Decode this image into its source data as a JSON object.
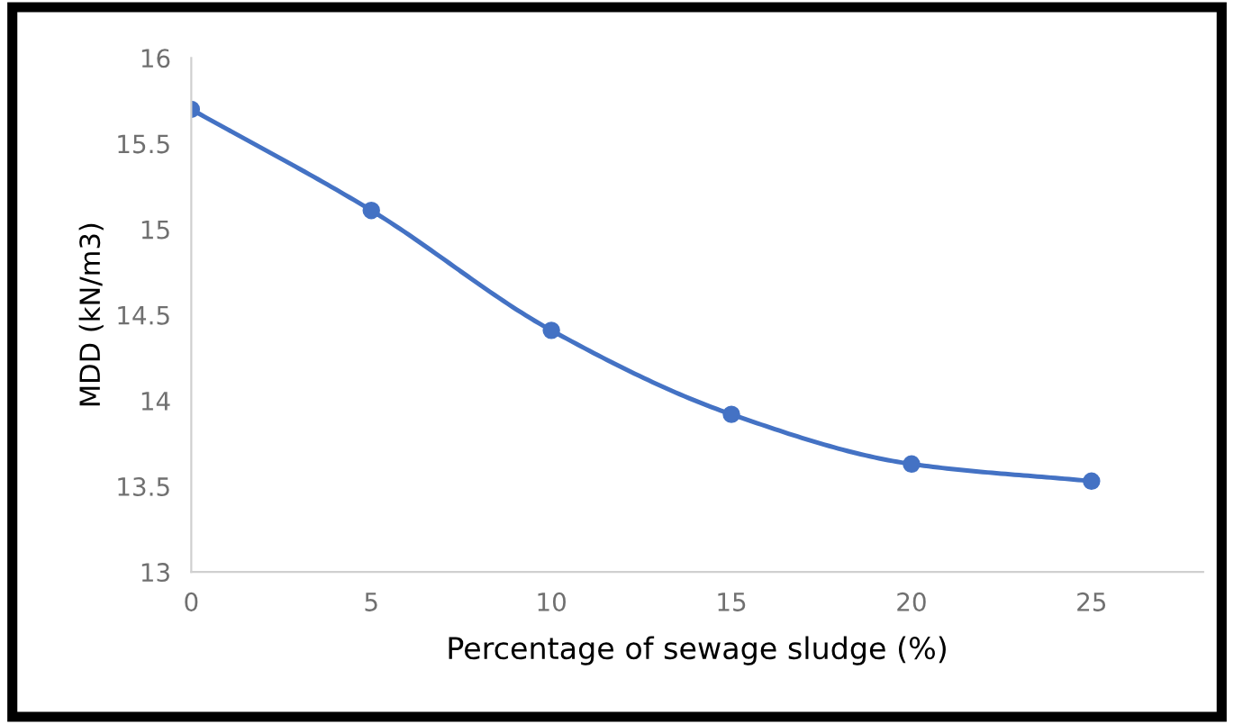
{
  "chart_data": {
    "type": "line",
    "xlabel": "Percentage of sewage sludge (%)",
    "ylabel": "MDD (kN/m3)",
    "x": [
      0,
      5,
      10,
      15,
      20,
      25
    ],
    "series": [
      {
        "color": "#4472c4",
        "values": [
          15.7,
          15.11,
          14.41,
          13.92,
          13.63,
          13.53
        ]
      }
    ],
    "xlim": [
      0,
      28.1
    ],
    "xticks": [
      0,
      5,
      10,
      15,
      20,
      25
    ],
    "ylim": [
      13,
      16
    ],
    "yticks": [
      13,
      13.5,
      14,
      14.5,
      15,
      15.5,
      16
    ],
    "marker": "circle",
    "line_style": "solid",
    "grid": false,
    "legend": false
  }
}
